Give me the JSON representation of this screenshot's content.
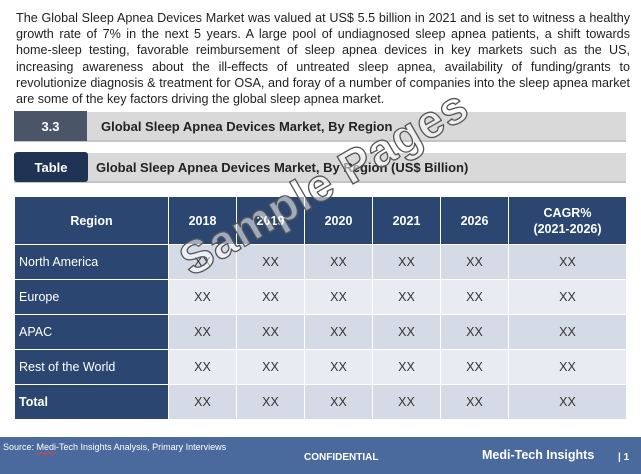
{
  "intro": "The Global Sleep Apnea Devices Market was valued at US$ 5.5 billion in 2021 and is set to witness a healthy growth rate of 7% in the next 5 years. A large pool of undiagnosed sleep apnea patients, a shift towards home-sleep testing, favorable reimbursement of sleep apnea devices in key markets such as the US, increasing awareness about the ill-effects of untreated sleep apnea, availability of funding/grants to revolutionize diagnosis & treatment for OSA,  and foray of a number of companies into the sleep apnea market are some of the key factors driving the global sleep apnea market.",
  "section": {
    "number": "3.3",
    "title": "Global Sleep Apnea Devices Market, By Region"
  },
  "table_caption": {
    "tag": "Table",
    "title": "Global Sleep Apnea Devices Market, By Region (US$ Billion)"
  },
  "table": {
    "headers": [
      "Region",
      "2018",
      "2019",
      "2020",
      "2021",
      "2026",
      "CAGR%",
      "(2021-2026)"
    ],
    "rows": [
      {
        "label": "North America",
        "cells": [
          "XX",
          "XX",
          "XX",
          "XX",
          "XX",
          "XX"
        ]
      },
      {
        "label": "Europe",
        "cells": [
          "XX",
          "XX",
          "XX",
          "XX",
          "XX",
          "XX"
        ]
      },
      {
        "label": "APAC",
        "cells": [
          "XX",
          "XX",
          "XX",
          "XX",
          "XX",
          "XX"
        ]
      },
      {
        "label": "Rest of the World",
        "cells": [
          "XX",
          "XX",
          "XX",
          "XX",
          "XX",
          "XX"
        ]
      },
      {
        "label": "Total",
        "cells": [
          "XX",
          "XX",
          "XX",
          "XX",
          "XX",
          "XX"
        ]
      }
    ]
  },
  "watermark": "Sample Pages",
  "footer": {
    "source_prefix": "Source: ",
    "source_brand": "Medi",
    "source_rest": "-Tech Insights Analysis, Primary Interviews",
    "confidential": "CONFIDENTIAL",
    "brand": "Medi-Tech Insights",
    "page": "| 1"
  },
  "colors": {
    "header_navy": "#2b4670",
    "tag_navy": "#1f3354",
    "footer_blue": "#4a6a9d",
    "section_grey": "#d9d9d9"
  }
}
